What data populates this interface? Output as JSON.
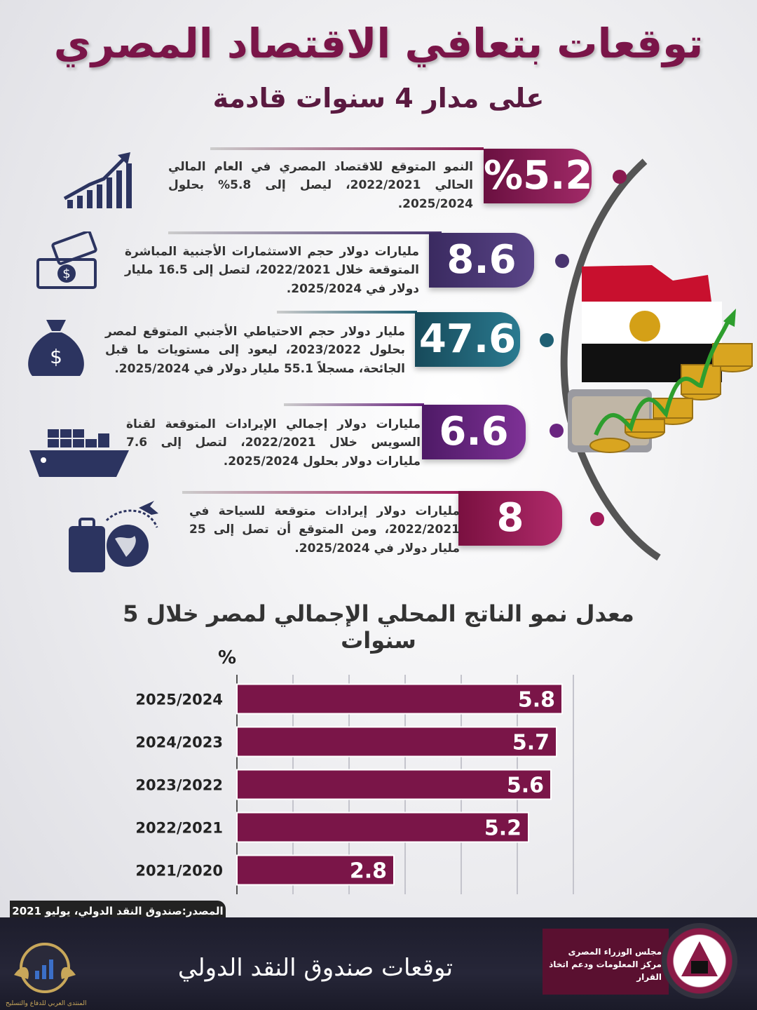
{
  "header": {
    "title": "توقعات بتعافي الاقتصاد المصري",
    "subtitle": "على مدار 4 سنوات قادمة"
  },
  "items": [
    {
      "value": "%5.2",
      "text": "النمو المتوقع للاقتصاد المصري في العام المالي الحالي 2022/2021، ليصل إلى 5.8% بحلول 2025/2024.",
      "color": "#8a1a50",
      "icon": "growth-chart-icon"
    },
    {
      "value": "8.6",
      "text": "مليارات دولار حجم الاستثمارات الأجنبية المباشرة المتوقعة خلال 2022/2021، لتصل إلى 16.5 مليار دولار في 2025/2024.",
      "color": "#4a3570",
      "icon": "cash-icon"
    },
    {
      "value": "47.6",
      "text": "مليار دولار حجم الاحتياطي الأجنبي المتوقع لمصر بحلول 2023/2022، ليعود إلى مستويات ما قبل الجائحة، مسجلاً 55.1 مليار دولار في 2025/2024.",
      "color": "#1f5f73",
      "icon": "money-bag-icon"
    },
    {
      "value": "6.6",
      "text": "مليارات دولار إجمالي الإيرادات المتوقعة لقناة السويس خلال 2022/2021، لتصل إلى 7.6 مليارات دولار بحلول 2025/2024.",
      "color": "#6a2580",
      "icon": "cargo-ship-icon"
    },
    {
      "value": "8",
      "text": "مليارات دولار إيرادات متوقعة للسياحة في 2022/2021، ومن المتوقع أن تصل إلى 25 مليار دولار في 2025/2024.",
      "color": "#a01a58",
      "icon": "travel-icon"
    }
  ],
  "chart_data": {
    "type": "bar",
    "orientation": "horizontal",
    "title": "معدل نمو الناتج المحلي الإجمالي لمصر خلال 5 سنوات",
    "ylabel": "%",
    "categories": [
      "2025/2024",
      "2024/2023",
      "2023/2022",
      "2022/2021",
      "2021/2020"
    ],
    "values": [
      5.8,
      5.7,
      5.6,
      5.2,
      2.8
    ],
    "xticks": [
      1,
      2,
      3,
      4,
      5,
      6
    ],
    "xlim": [
      0,
      6
    ],
    "bar_color": "#7a1548",
    "grid": true
  },
  "footer": {
    "source": "المصدر:صندوق النقد الدولي، يوليو 2021",
    "label": "توقعات صندوق النقد الدولي",
    "council_line1": "مجلس الوزراء المصرى",
    "council_line2": "مركز المعلومات ودعم اتخاذ القرار",
    "forum_caption": "المنتدى العربي للدفاع والتسليح"
  }
}
